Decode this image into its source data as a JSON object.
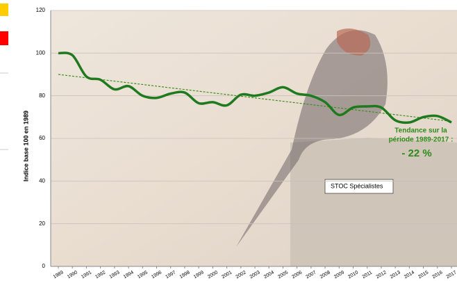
{
  "chart_data": {
    "type": "line",
    "y_label": "Indice base 100 en 1989",
    "x": [
      1989,
      1990,
      1991,
      1992,
      1993,
      1994,
      1995,
      1996,
      1997,
      1998,
      1999,
      2000,
      2001,
      2002,
      2003,
      2004,
      2005,
      2006,
      2007,
      2008,
      2009,
      2010,
      2011,
      2012,
      2013,
      2014,
      2015,
      2016,
      2017
    ],
    "series": [
      {
        "name": "STOC Spécialistes",
        "color": "#1f7a1f",
        "values": [
          100,
          99,
          89,
          87.5,
          83,
          84.5,
          80,
          79,
          81,
          81.5,
          76.5,
          77,
          75.5,
          80.5,
          80,
          81.5,
          84,
          81,
          80,
          77,
          71,
          74.5,
          75,
          74.5,
          68.5,
          67.5,
          70,
          70.5,
          67.5
        ]
      }
    ],
    "trend": {
      "color": "#3d8f1e",
      "x": [
        1989,
        2017
      ],
      "values": [
        90,
        68
      ]
    },
    "annotation": {
      "lines": [
        "Tendance sur la",
        "période 1989-2017 :"
      ],
      "value": "- 22 %",
      "color": "#2e8b1a"
    },
    "xlim": [
      1989,
      2017
    ],
    "xticks": [
      1989,
      1990,
      1991,
      1992,
      1993,
      1994,
      1995,
      1996,
      1997,
      1998,
      1999,
      2000,
      2001,
      2002,
      2003,
      2004,
      2005,
      2006,
      2007,
      2008,
      2009,
      2010,
      2011,
      2012,
      2013,
      2014,
      2015,
      2016,
      2017
    ],
    "ylim": [
      0,
      120
    ],
    "yticks": [
      0,
      20,
      40,
      60,
      80,
      100,
      120
    ],
    "grid": true
  }
}
